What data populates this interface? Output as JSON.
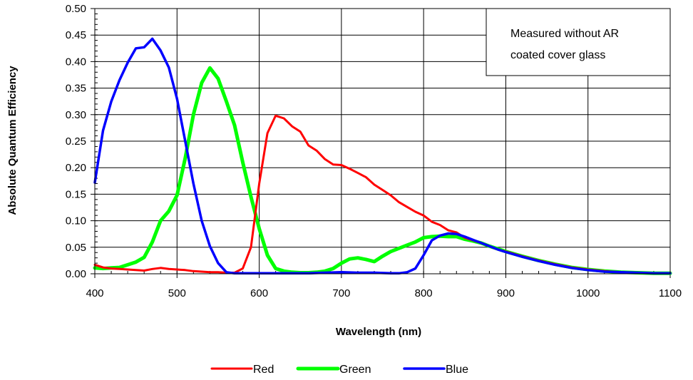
{
  "chart_data": {
    "type": "line",
    "title": "",
    "xlabel": "Wavelength (nm)",
    "ylabel": "Absolute Quantum Efficiency",
    "xlim": [
      400,
      1100
    ],
    "ylim": [
      0,
      0.5
    ],
    "x_ticks": [
      "400",
      "500",
      "600",
      "700",
      "800",
      "900",
      "1000",
      "1100"
    ],
    "y_ticks": [
      "0.00",
      "0.05",
      "0.10",
      "0.15",
      "0.20",
      "0.25",
      "0.30",
      "0.35",
      "0.40",
      "0.45",
      "0.50"
    ],
    "grid": true,
    "legend_position": "bottom",
    "annotation": [
      "Measured without AR",
      "coated cover glass"
    ],
    "series": [
      {
        "name": "Red",
        "color": "#ff0000",
        "points": [
          [
            400,
            0.017
          ],
          [
            410,
            0.012
          ],
          [
            420,
            0.01
          ],
          [
            430,
            0.009
          ],
          [
            440,
            0.008
          ],
          [
            450,
            0.007
          ],
          [
            460,
            0.006
          ],
          [
            470,
            0.009
          ],
          [
            480,
            0.011
          ],
          [
            490,
            0.009
          ],
          [
            500,
            0.008
          ],
          [
            510,
            0.007
          ],
          [
            520,
            0.005
          ],
          [
            530,
            0.004
          ],
          [
            540,
            0.003
          ],
          [
            550,
            0.003
          ],
          [
            560,
            0.002
          ],
          [
            570,
            0.002
          ],
          [
            580,
            0.01
          ],
          [
            590,
            0.05
          ],
          [
            600,
            0.17
          ],
          [
            610,
            0.265
          ],
          [
            620,
            0.298
          ],
          [
            630,
            0.293
          ],
          [
            640,
            0.278
          ],
          [
            650,
            0.268
          ],
          [
            660,
            0.242
          ],
          [
            670,
            0.232
          ],
          [
            680,
            0.216
          ],
          [
            690,
            0.206
          ],
          [
            700,
            0.205
          ],
          [
            710,
            0.198
          ],
          [
            720,
            0.19
          ],
          [
            730,
            0.182
          ],
          [
            740,
            0.168
          ],
          [
            750,
            0.158
          ],
          [
            760,
            0.148
          ],
          [
            770,
            0.135
          ],
          [
            780,
            0.126
          ],
          [
            790,
            0.117
          ],
          [
            800,
            0.11
          ],
          [
            810,
            0.098
          ],
          [
            820,
            0.092
          ],
          [
            830,
            0.082
          ],
          [
            840,
            0.078
          ],
          [
            850,
            0.068
          ],
          [
            860,
            0.063
          ],
          [
            870,
            0.058
          ],
          [
            880,
            0.052
          ],
          [
            890,
            0.046
          ],
          [
            900,
            0.042
          ],
          [
            920,
            0.033
          ],
          [
            940,
            0.025
          ],
          [
            960,
            0.018
          ],
          [
            980,
            0.012
          ],
          [
            1000,
            0.008
          ],
          [
            1020,
            0.005
          ],
          [
            1040,
            0.003
          ],
          [
            1060,
            0.002
          ],
          [
            1080,
            0.001
          ],
          [
            1100,
            0.001
          ]
        ]
      },
      {
        "name": "Green",
        "color": "#00ff00",
        "points": [
          [
            400,
            0.011
          ],
          [
            410,
            0.01
          ],
          [
            420,
            0.011
          ],
          [
            430,
            0.012
          ],
          [
            440,
            0.017
          ],
          [
            450,
            0.022
          ],
          [
            460,
            0.031
          ],
          [
            470,
            0.06
          ],
          [
            480,
            0.1
          ],
          [
            490,
            0.118
          ],
          [
            500,
            0.148
          ],
          [
            510,
            0.218
          ],
          [
            520,
            0.3
          ],
          [
            530,
            0.36
          ],
          [
            540,
            0.388
          ],
          [
            550,
            0.368
          ],
          [
            560,
            0.325
          ],
          [
            570,
            0.28
          ],
          [
            580,
            0.21
          ],
          [
            590,
            0.145
          ],
          [
            600,
            0.085
          ],
          [
            610,
            0.035
          ],
          [
            620,
            0.01
          ],
          [
            630,
            0.005
          ],
          [
            640,
            0.003
          ],
          [
            650,
            0.002
          ],
          [
            660,
            0.002
          ],
          [
            670,
            0.003
          ],
          [
            680,
            0.005
          ],
          [
            690,
            0.01
          ],
          [
            700,
            0.02
          ],
          [
            710,
            0.028
          ],
          [
            720,
            0.03
          ],
          [
            730,
            0.027
          ],
          [
            740,
            0.023
          ],
          [
            750,
            0.033
          ],
          [
            760,
            0.042
          ],
          [
            770,
            0.048
          ],
          [
            780,
            0.054
          ],
          [
            790,
            0.06
          ],
          [
            800,
            0.068
          ],
          [
            810,
            0.07
          ],
          [
            820,
            0.071
          ],
          [
            830,
            0.07
          ],
          [
            840,
            0.07
          ],
          [
            850,
            0.065
          ],
          [
            860,
            0.062
          ],
          [
            870,
            0.058
          ],
          [
            880,
            0.052
          ],
          [
            890,
            0.047
          ],
          [
            900,
            0.042
          ],
          [
            920,
            0.033
          ],
          [
            940,
            0.025
          ],
          [
            960,
            0.018
          ],
          [
            980,
            0.012
          ],
          [
            1000,
            0.008
          ],
          [
            1020,
            0.005
          ],
          [
            1040,
            0.003
          ],
          [
            1060,
            0.002
          ],
          [
            1080,
            0.001
          ],
          [
            1100,
            0.001
          ]
        ]
      },
      {
        "name": "Blue",
        "color": "#0000ff",
        "points": [
          [
            400,
            0.172
          ],
          [
            410,
            0.27
          ],
          [
            420,
            0.325
          ],
          [
            430,
            0.365
          ],
          [
            440,
            0.398
          ],
          [
            450,
            0.425
          ],
          [
            460,
            0.427
          ],
          [
            470,
            0.443
          ],
          [
            480,
            0.421
          ],
          [
            490,
            0.389
          ],
          [
            500,
            0.33
          ],
          [
            510,
            0.25
          ],
          [
            520,
            0.17
          ],
          [
            530,
            0.1
          ],
          [
            540,
            0.052
          ],
          [
            550,
            0.02
          ],
          [
            560,
            0.003
          ],
          [
            570,
            0.001
          ],
          [
            580,
            0.001
          ],
          [
            590,
            0.001
          ],
          [
            600,
            0.001
          ],
          [
            620,
            0.001
          ],
          [
            640,
            0.001
          ],
          [
            660,
            0.001
          ],
          [
            680,
            0.002
          ],
          [
            700,
            0.003
          ],
          [
            720,
            0.002
          ],
          [
            740,
            0.002
          ],
          [
            760,
            0.001
          ],
          [
            770,
            0.001
          ],
          [
            780,
            0.003
          ],
          [
            790,
            0.01
          ],
          [
            800,
            0.035
          ],
          [
            810,
            0.063
          ],
          [
            820,
            0.072
          ],
          [
            830,
            0.076
          ],
          [
            840,
            0.075
          ],
          [
            850,
            0.07
          ],
          [
            860,
            0.064
          ],
          [
            870,
            0.058
          ],
          [
            880,
            0.052
          ],
          [
            890,
            0.046
          ],
          [
            900,
            0.041
          ],
          [
            920,
            0.032
          ],
          [
            940,
            0.024
          ],
          [
            960,
            0.017
          ],
          [
            980,
            0.011
          ],
          [
            1000,
            0.007
          ],
          [
            1020,
            0.004
          ],
          [
            1040,
            0.003
          ],
          [
            1060,
            0.002
          ],
          [
            1080,
            0.001
          ],
          [
            1100,
            0.001
          ]
        ]
      }
    ]
  }
}
